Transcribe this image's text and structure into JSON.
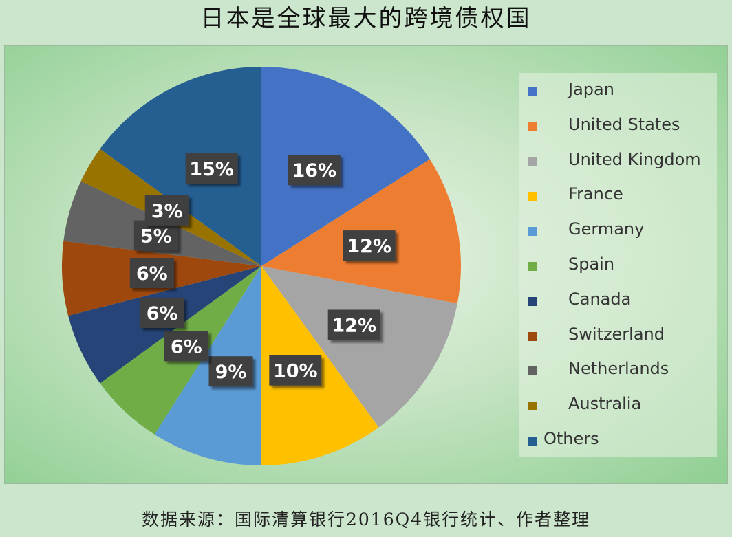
{
  "title": "日本是全球最大的跨境债权国",
  "source": "数据来源：国际清算银行2016Q4银行统计、作者整理",
  "chart_data": {
    "type": "pie",
    "title": "日本是全球最大的跨境债权国",
    "legend_position": "right",
    "slices": [
      {
        "name": "Japan",
        "value": 16,
        "label": "16%",
        "color": "#4472C4"
      },
      {
        "name": "United States",
        "value": 12,
        "label": "12%",
        "color": "#ED7D31"
      },
      {
        "name": "United Kingdom",
        "value": 12,
        "label": "12%",
        "color": "#A5A5A5"
      },
      {
        "name": "France",
        "value": 10,
        "label": "10%",
        "color": "#FFC000"
      },
      {
        "name": "Germany",
        "value": 9,
        "label": "9%",
        "color": "#5B9BD5"
      },
      {
        "name": "Spain",
        "value": 6,
        "label": "6%",
        "color": "#70AD47"
      },
      {
        "name": "Canada",
        "value": 6,
        "label": "6%",
        "color": "#264478"
      },
      {
        "name": "Switzerland",
        "value": 6,
        "label": "6%",
        "color": "#9E480E"
      },
      {
        "name": "Netherlands",
        "value": 5,
        "label": "5%",
        "color": "#636363"
      },
      {
        "name": "Australia",
        "value": 3,
        "label": "3%",
        "color": "#997300"
      },
      {
        "name": "Others",
        "value": 15,
        "label": "15%",
        "color": "#255E91"
      }
    ]
  }
}
